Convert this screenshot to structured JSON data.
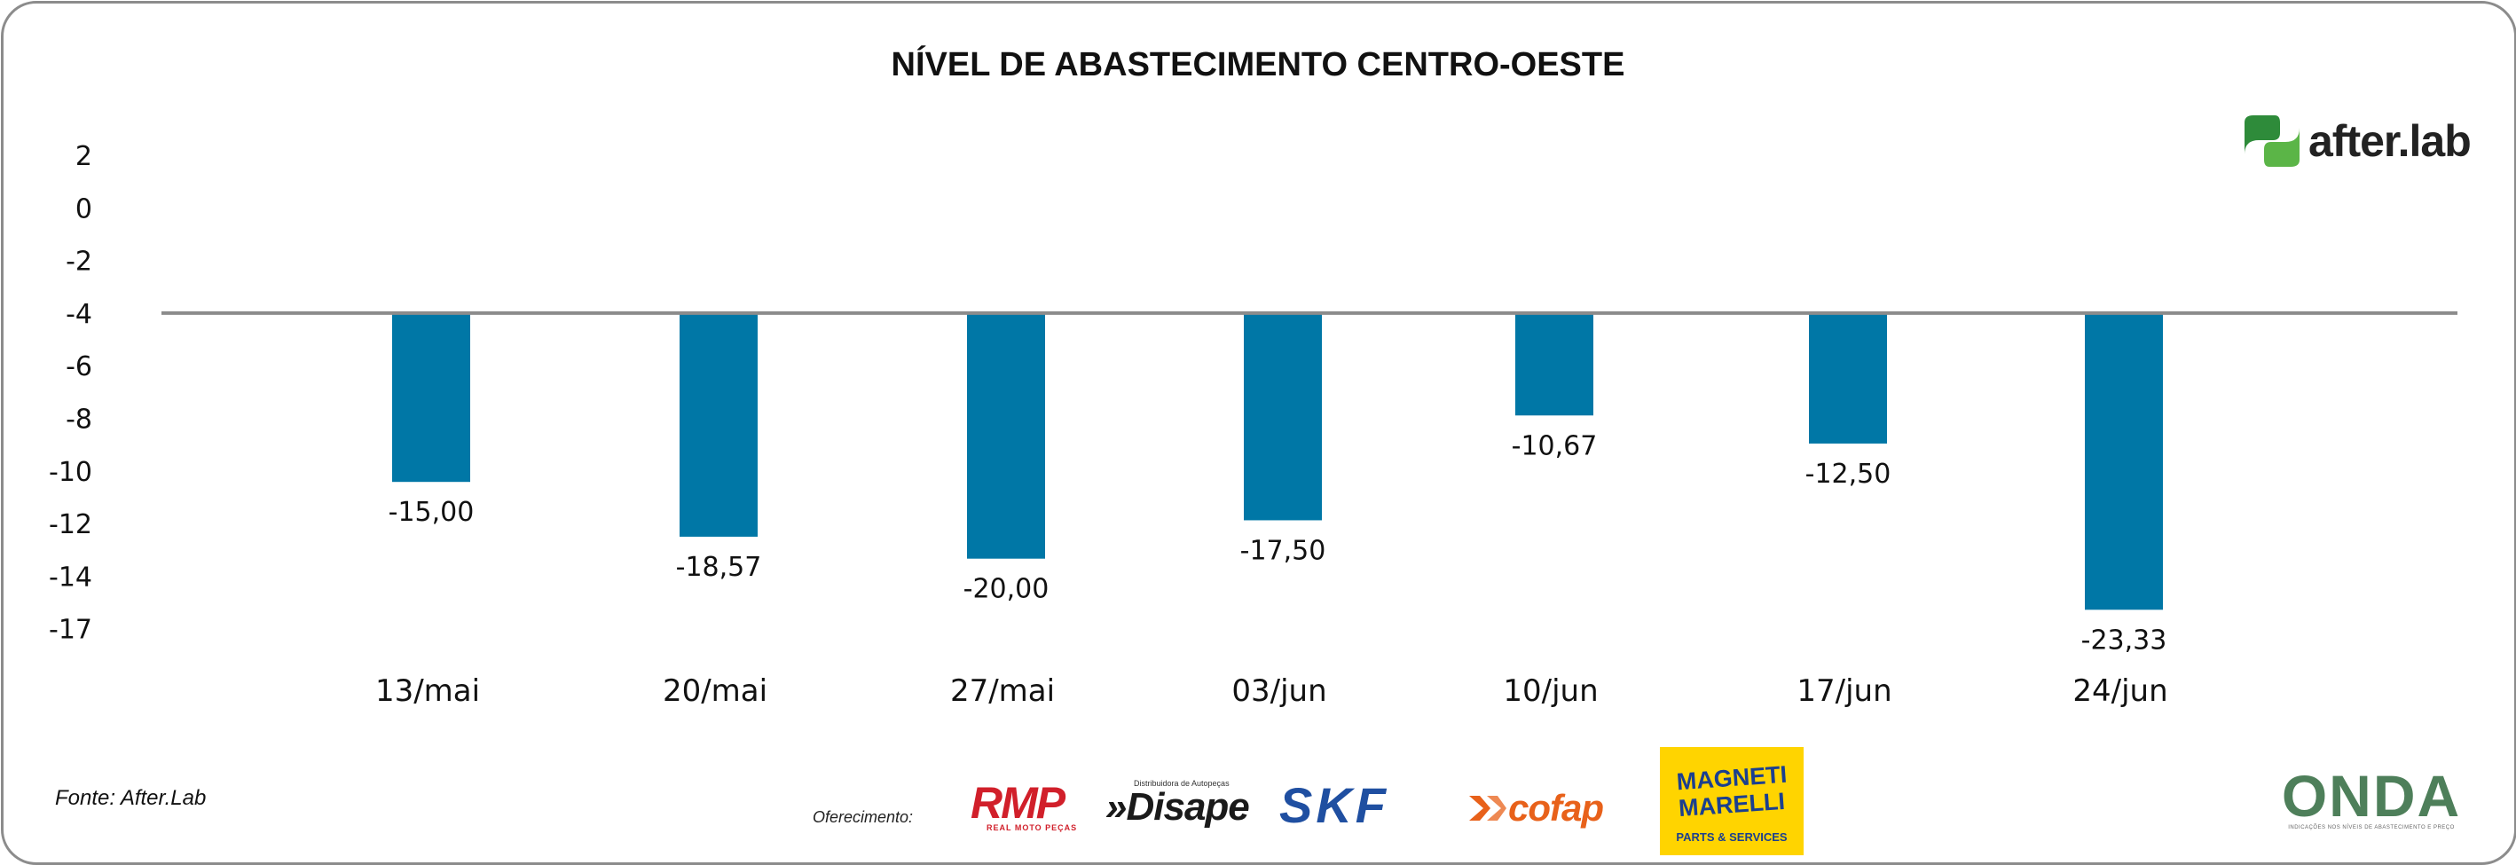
{
  "chart_data": {
    "type": "bar",
    "title": "NÍVEL DE ABASTECIMENTO CENTRO-OESTE",
    "categories": [
      "13/mai",
      "20/mai",
      "27/mai",
      "03/jun",
      "10/jun",
      "17/jun",
      "24/jun"
    ],
    "values": [
      -15.0,
      -18.57,
      -20.0,
      -17.5,
      -10.67,
      -12.5,
      -23.33
    ],
    "value_labels": [
      "-15,00",
      "-18,57",
      "-20,00",
      "-17,50",
      "-10,67",
      "-12,50",
      "-23,33"
    ],
    "yticks": [
      "2",
      "0",
      "-2",
      "-4",
      "-6",
      "-8",
      "-10",
      "-12",
      "-14",
      "-17"
    ],
    "baseline_tick": "-4",
    "xlabel": "",
    "ylabel": "",
    "bar_color": "#0077a6",
    "baseline_color": "#8c8c8c"
  },
  "footer": {
    "source": "Fonte: After.Lab",
    "sponsor_label": "Oferecimento:"
  },
  "logos": {
    "afterlab": "after.lab",
    "rmp": "RMP",
    "rmp_sub": "REAL MOTO PEÇAS",
    "disape_tag": "Distribuidora de Autopeças",
    "disape": "»Disape",
    "skf": "SKF",
    "cofap": "cofap",
    "magneti_1": "MAGNETI",
    "magneti_2": "MARELLI",
    "magneti_3": "PARTS & SERVICES",
    "onda": "ONDA",
    "onda_sub": "INDICAÇÕES NOS NÍVEIS DE ABASTECIMENTO E PREÇO"
  },
  "colors": {
    "afterlab_green": "#5bb547",
    "afterlab_dark_green": "#2e8b3a"
  }
}
